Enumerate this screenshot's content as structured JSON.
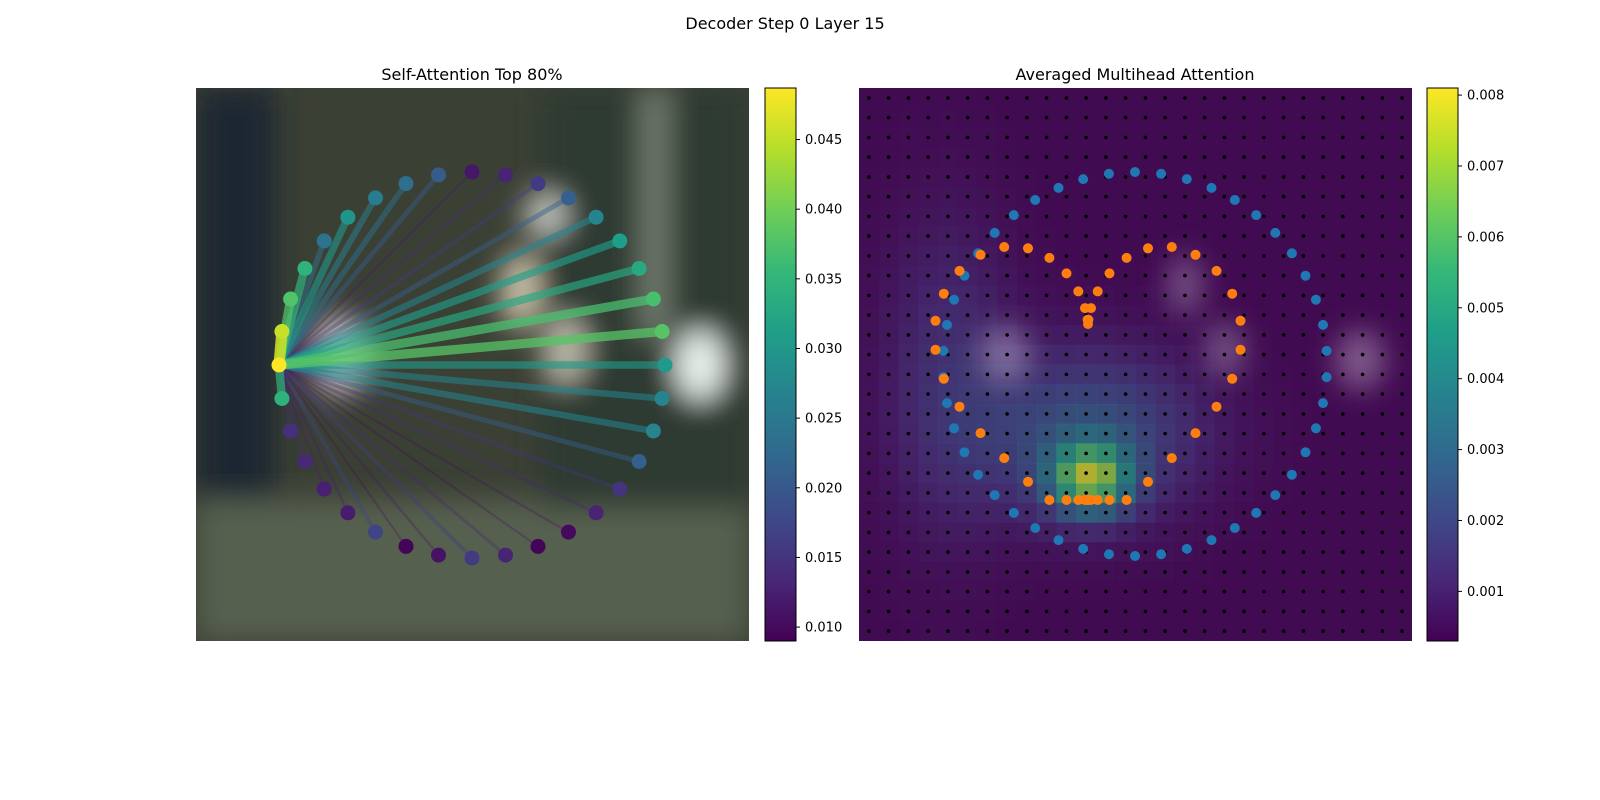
{
  "suptitle": "Decoder Step 0 Layer 15",
  "colors": {
    "viridis": [
      "#440154",
      "#482878",
      "#3e4989",
      "#31688e",
      "#26828e",
      "#1f9e89",
      "#35b779",
      "#6ece58",
      "#b5de2b",
      "#fde725"
    ],
    "inner_points": "#ff7f0e",
    "outer_points": "#1f77b4",
    "grid_points": "#000000",
    "background": "#3a3f35"
  },
  "chart_data": [
    {
      "type": "scatter",
      "title": "Self-Attention Top 80%",
      "description_of_points": "circle of 36 points colored by attention weight, lines from the selected point to others",
      "selected_index": 27,
      "point_values": [
        0.0115,
        0.013,
        0.016,
        0.021,
        0.027,
        0.031,
        0.033,
        0.037,
        0.038,
        0.0305,
        0.027,
        0.027,
        0.021,
        0.015,
        0.013,
        0.01,
        0.0095,
        0.013,
        0.016,
        0.011,
        0.0095,
        0.017,
        0.012,
        0.0125,
        0.0135,
        0.0145,
        0.0345,
        0.049,
        0.0455,
        0.0375,
        0.0345,
        0.024,
        0.0295,
        0.0255,
        0.0235,
        0.0205
      ],
      "colorbar": {
        "min": 0.009,
        "max": 0.0487,
        "ticks": [
          "0.010",
          "0.015",
          "0.020",
          "0.025",
          "0.030",
          "0.035",
          "0.040",
          "0.045"
        ],
        "tick_values": [
          0.01,
          0.015,
          0.02,
          0.025,
          0.03,
          0.035,
          0.04,
          0.045
        ]
      }
    },
    {
      "type": "heatmap",
      "title": "Averaged Multihead Attention",
      "grid_size": [
        28,
        28
      ],
      "heatmap_peak": 0.0081,
      "heatmap_floor": 0.0003,
      "series": [
        {
          "color": "#1f77b4",
          "count": 46
        },
        {
          "color": "#ff7f0e",
          "count": 46
        }
      ],
      "colorbar": {
        "min": 0.0003,
        "max": 0.0081,
        "ticks": [
          "0.001",
          "0.002",
          "0.003",
          "0.004",
          "0.005",
          "0.006",
          "0.007",
          "0.008"
        ],
        "tick_values": [
          0.001,
          0.002,
          0.003,
          0.004,
          0.005,
          0.006,
          0.007,
          0.008
        ]
      }
    }
  ]
}
